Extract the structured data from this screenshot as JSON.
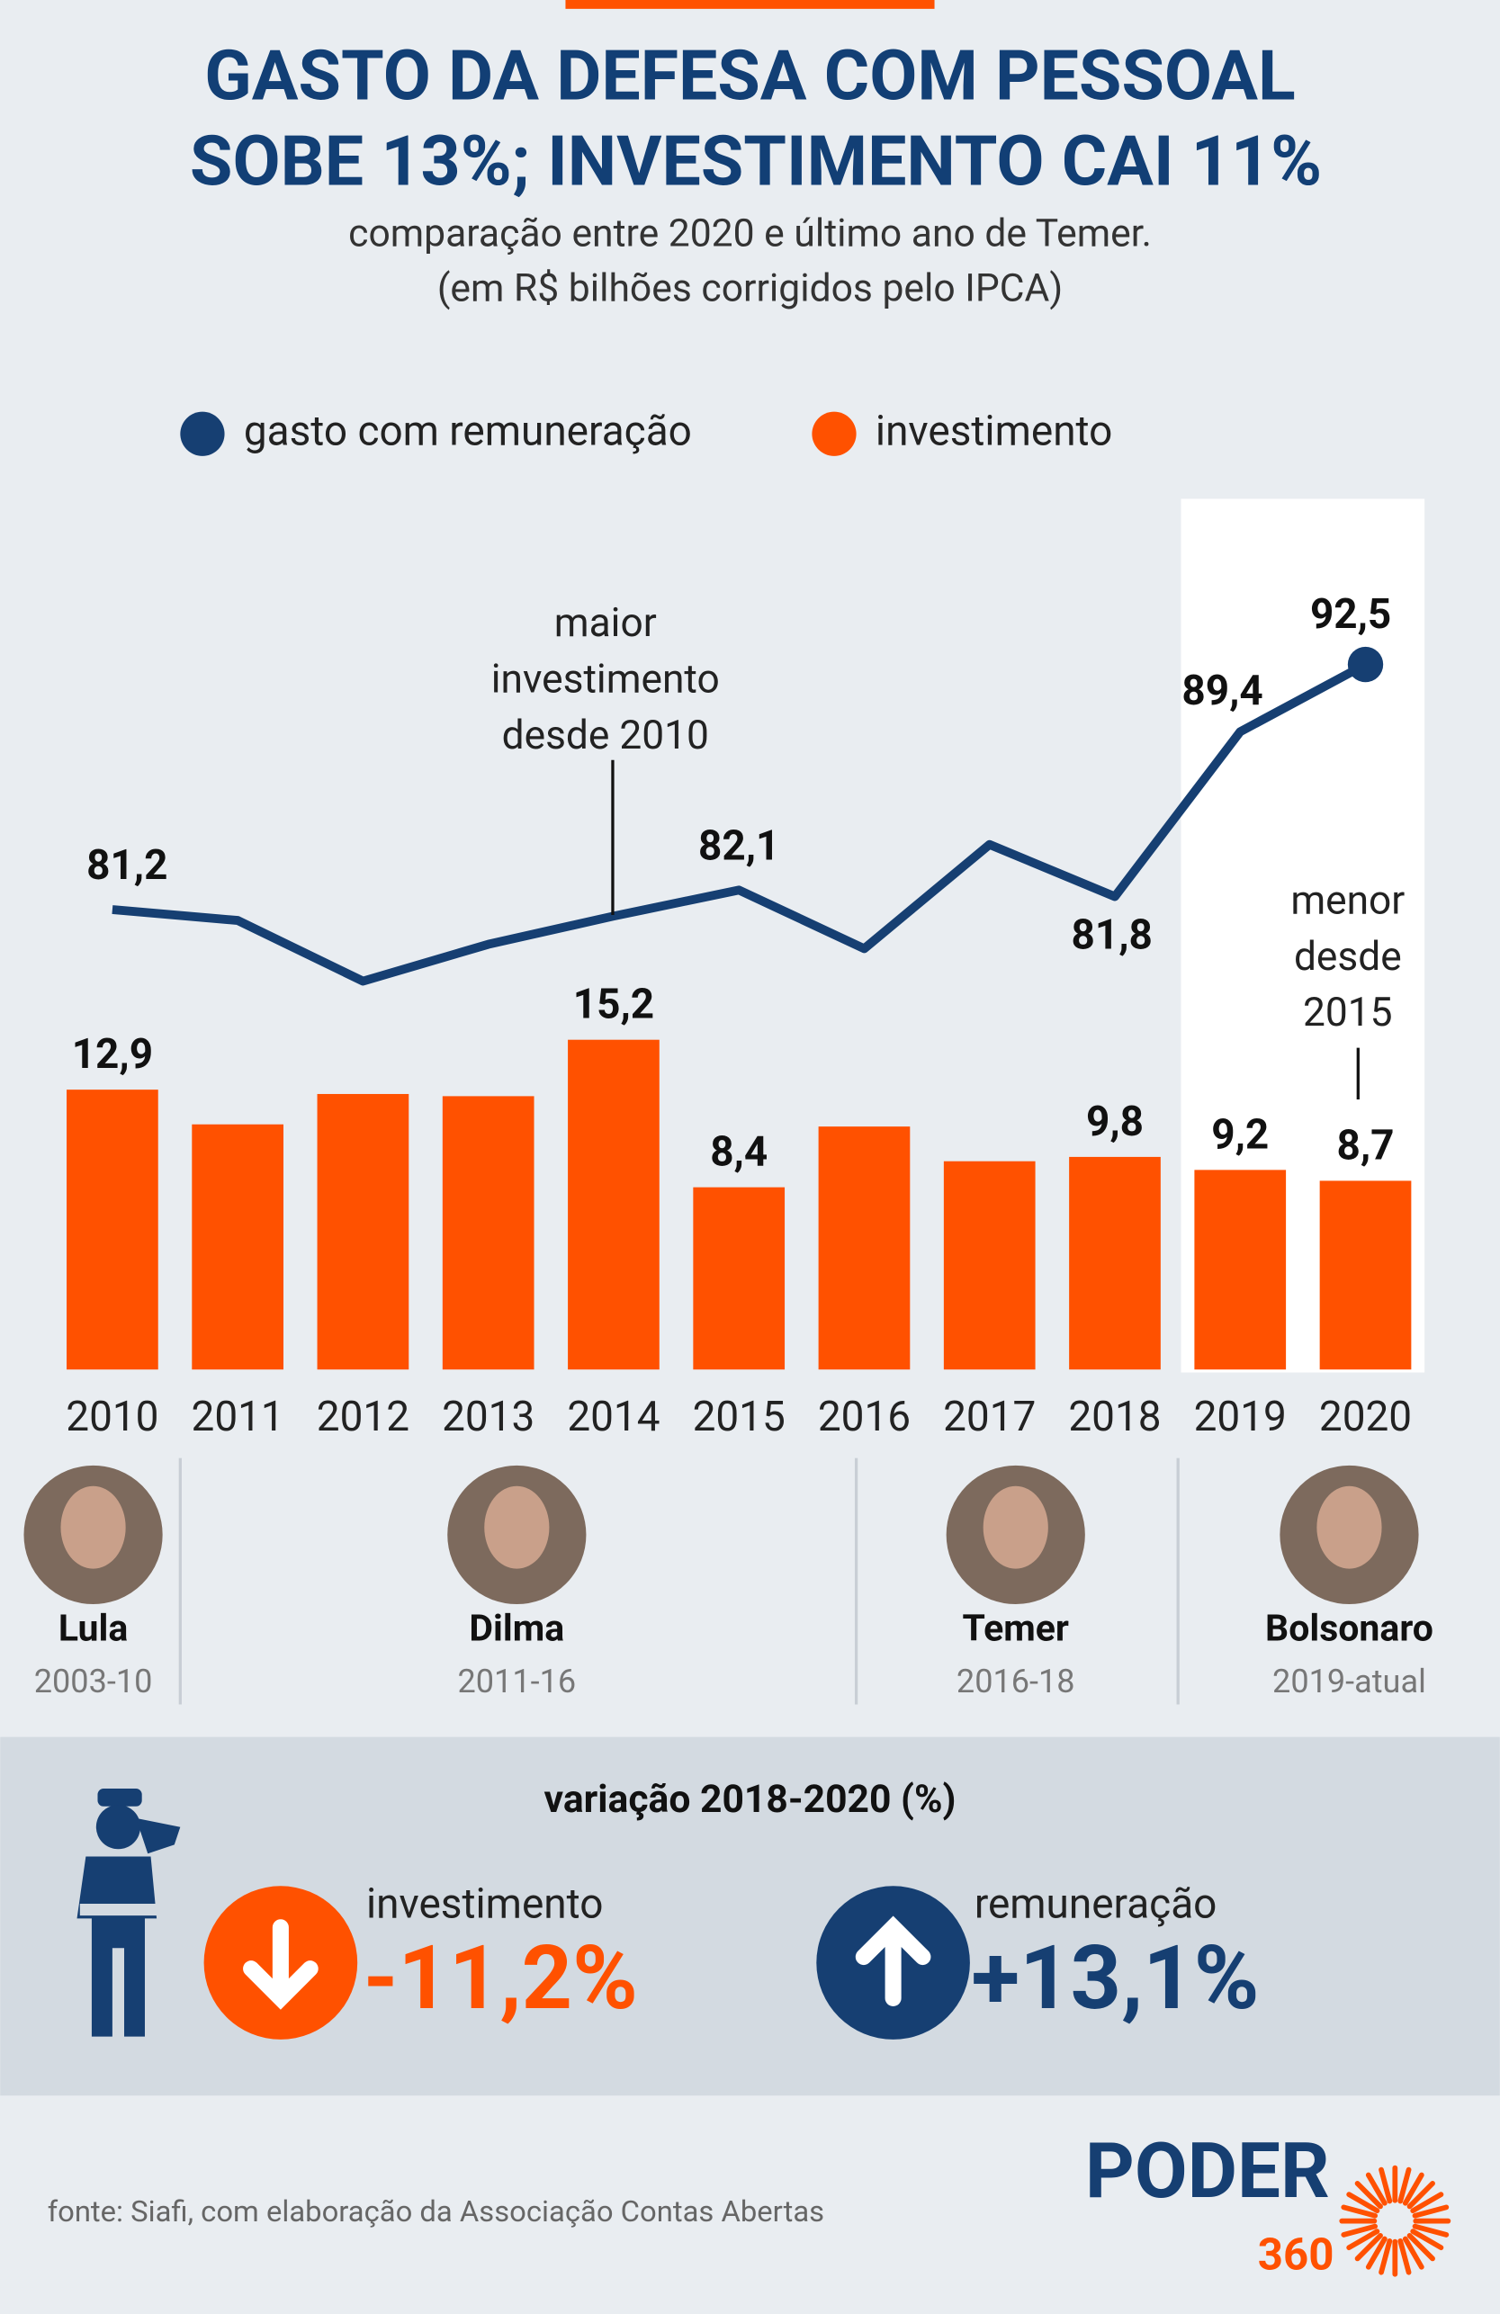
{
  "chart_data": {
    "type": "bar",
    "title": [
      "GASTO DA DEFESA COM PESSOAL",
      "SOBE 13%; INVESTIMENTO CAI 11%"
    ],
    "subtitle": [
      "comparação entre 2020 e último ano de Temer.",
      "(em R$ bilhões corrigidos pelo IPCA)"
    ],
    "categories": [
      "2010",
      "2011",
      "2012",
      "2013",
      "2014",
      "2015",
      "2016",
      "2017",
      "2018",
      "2019",
      "2020"
    ],
    "series": [
      {
        "name": "gasto com remuneração",
        "type": "line",
        "axis": "y2",
        "color": "#163f72",
        "values": [
          81.2,
          80.7,
          77.9,
          79.6,
          80.9,
          82.1,
          79.4,
          84.2,
          81.8,
          89.4,
          92.5
        ],
        "value_labels": [
          "81,2",
          null,
          null,
          null,
          null,
          "82,1",
          null,
          null,
          "81,8",
          "89,4",
          "92,5"
        ]
      },
      {
        "name": "investimento",
        "type": "bar",
        "color": "#ff5100",
        "values": [
          12.9,
          11.3,
          12.7,
          12.6,
          15.2,
          8.4,
          11.2,
          9.6,
          9.8,
          9.2,
          8.7
        ],
        "value_labels": [
          "12,9",
          null,
          null,
          null,
          "15,2",
          "8,4",
          null,
          null,
          "9,8",
          "9,2",
          "8,7"
        ]
      }
    ],
    "ylim": [
      0,
      40
    ],
    "y2lim": [
      60,
      100
    ],
    "annotations": [
      {
        "text": [
          "maior",
          "investimento",
          "desde 2010"
        ]
      },
      {
        "text": [
          "menor",
          "desde",
          "2015"
        ]
      }
    ]
  },
  "presidents": [
    {
      "name": "Lula",
      "period": "2003-10"
    },
    {
      "name": "Dilma",
      "period": "2011-16"
    },
    {
      "name": "Temer",
      "period": "2016-18"
    },
    {
      "name": "Bolsonaro",
      "period": "2019-atual"
    }
  ],
  "variation": {
    "title": "variação 2018-2020 (%)",
    "items": [
      {
        "label": "investimento",
        "value": "-11,2%"
      },
      {
        "label": "remuneração",
        "value": "+13,1%"
      }
    ]
  },
  "source": "fonte: Siafi, com elaboração da Associação Contas Abertas",
  "logo": {
    "name": "PODER",
    "number": "360"
  }
}
